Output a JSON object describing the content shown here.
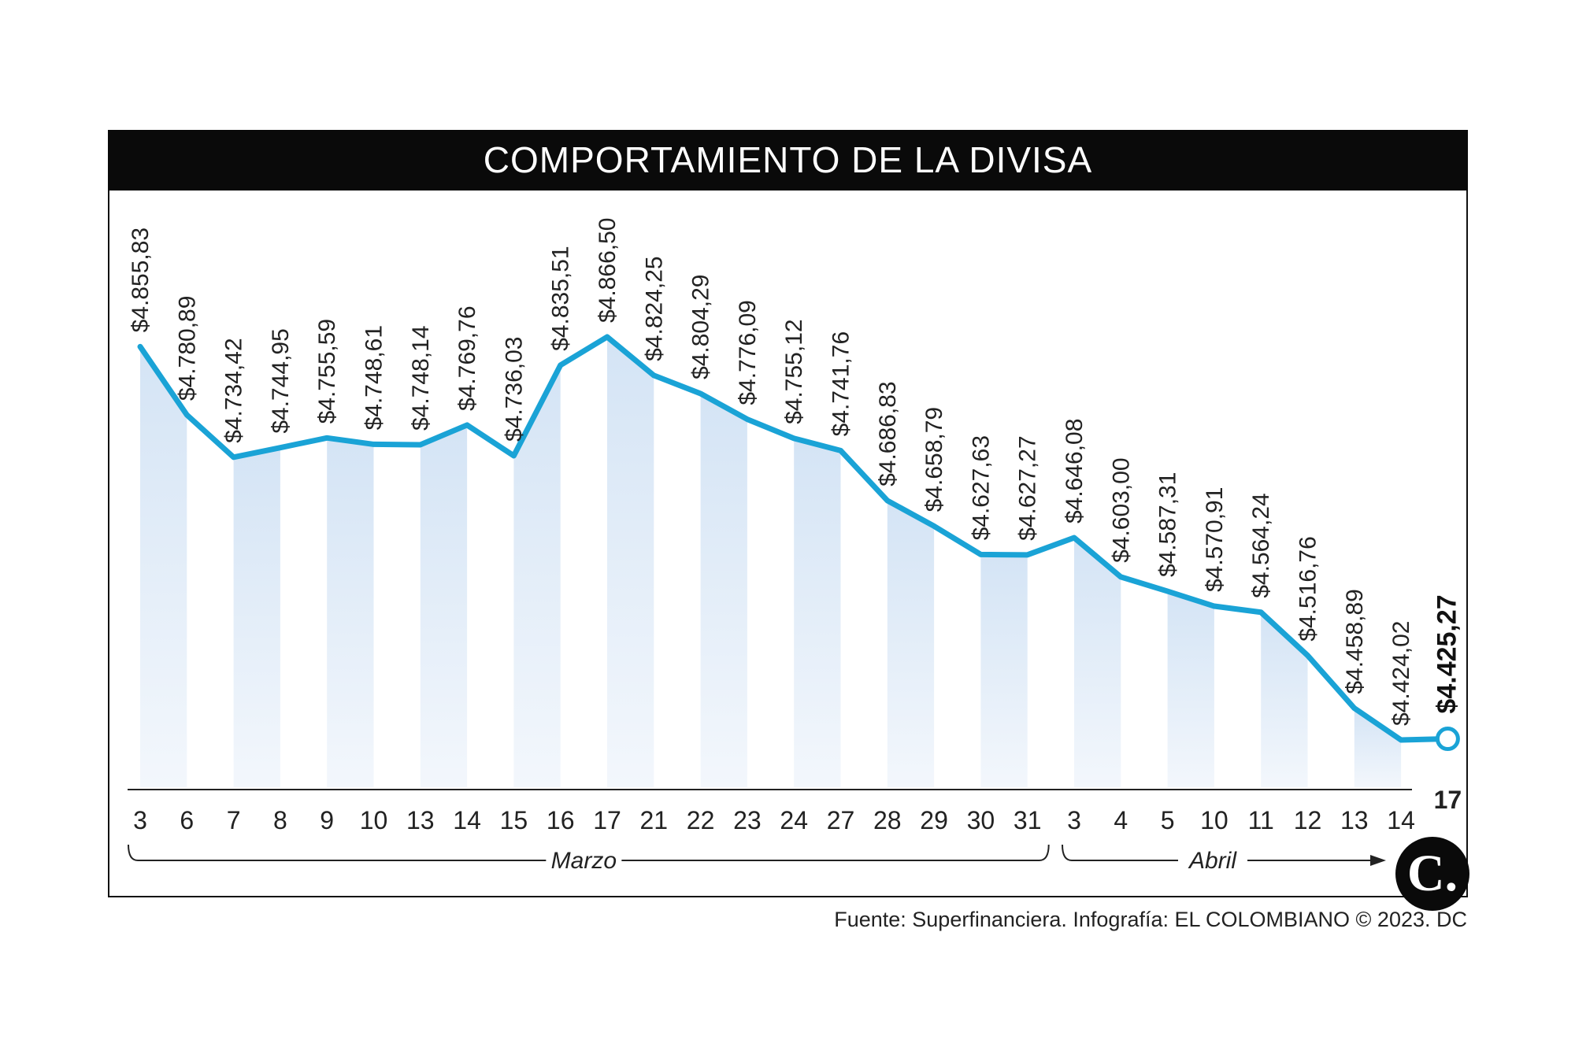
{
  "title": "COMPORTAMIENTO DE LA DIVISA",
  "source": "Fuente: Superfinanciera. Infografía: EL COLOMBIANO © 2023. DC",
  "logo_text": "C.",
  "colors": {
    "line": "#1aa3d6",
    "fill_top": "#d4e4f5",
    "fill_bottom": "#f3f7fc",
    "title_bg": "#0a0a0a"
  },
  "chart_data": {
    "type": "line",
    "title": "COMPORTAMIENTO DE LA DIVISA",
    "x": [
      "3",
      "6",
      "7",
      "8",
      "9",
      "10",
      "13",
      "14",
      "15",
      "16",
      "17",
      "21",
      "22",
      "23",
      "24",
      "27",
      "28",
      "29",
      "30",
      "31",
      "3",
      "4",
      "5",
      "10",
      "11",
      "12",
      "13",
      "14",
      "17"
    ],
    "values": [
      4855.83,
      4780.89,
      4734.42,
      4744.95,
      4755.59,
      4748.61,
      4748.14,
      4769.76,
      4736.03,
      4835.51,
      4866.5,
      4824.25,
      4804.29,
      4776.09,
      4755.12,
      4741.76,
      4686.83,
      4658.79,
      4627.63,
      4627.27,
      4646.08,
      4603.0,
      4587.31,
      4570.91,
      4564.24,
      4516.76,
      4458.89,
      4424.02,
      4425.27
    ],
    "value_labels": [
      "$4.855,83",
      "$4.780,89",
      "$4.734,42",
      "$4.744,95",
      "$4.755,59",
      "$4.748,61",
      "$4.748,14",
      "$4.769,76",
      "$4.736,03",
      "$4.835,51",
      "$4.866,50",
      "$4.824,25",
      "$4.804,29",
      "$4.776,09",
      "$4.755,12",
      "$4.741,76",
      "$4.686,83",
      "$4.658,79",
      "$4.627,63",
      "$4.627,27",
      "$4.646,08",
      "$4.603,00",
      "$4.587,31",
      "$4.570,91",
      "$4.564,24",
      "$4.516,76",
      "$4.458,89",
      "$4.424,02",
      "$4.425,27"
    ],
    "months": [
      {
        "label": "Marzo",
        "from": 0,
        "to": 19
      },
      {
        "label": "Abril",
        "from": 20,
        "to": 28
      }
    ],
    "xlabel": "",
    "ylabel": "",
    "ylim": [
      4360,
      4900
    ]
  }
}
